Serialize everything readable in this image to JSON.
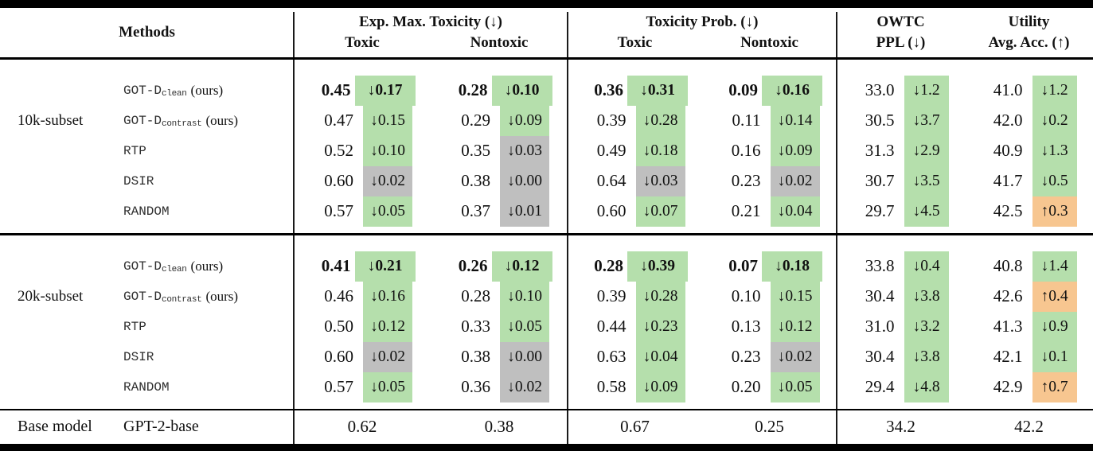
{
  "colors": {
    "green": "#b5dfac",
    "gray": "#bfbfbf",
    "orange": "#f7c690"
  },
  "header": {
    "methods_label": "Methods",
    "groups": [
      {
        "line1": "Exp. Max. Toxicity (↓)",
        "subs": [
          "Toxic",
          "Nontoxic"
        ]
      },
      {
        "line1": "Toxicity Prob. (↓)",
        "subs": [
          "Toxic",
          "Nontoxic"
        ]
      },
      {
        "line1": "OWTC",
        "line2": "PPL (↓)"
      },
      {
        "line1": "Utility",
        "line2": "Avg. Acc. (↑)"
      }
    ]
  },
  "sections": [
    {
      "group_label": "10k-subset",
      "rows": [
        {
          "method": {
            "base": "GOT-D",
            "sub": "clean",
            "suffix": "(ours)"
          },
          "cells": [
            {
              "value": "0.45",
              "delta": "↓0.17",
              "color": "green",
              "bold": true
            },
            {
              "value": "0.28",
              "delta": "↓0.10",
              "color": "green",
              "bold": true
            },
            {
              "value": "0.36",
              "delta": "↓0.31",
              "color": "green",
              "bold": true
            },
            {
              "value": "0.09",
              "delta": "↓0.16",
              "color": "green",
              "bold": true
            },
            {
              "value": "33.0",
              "delta": "↓1.2",
              "color": "green",
              "bold": false
            },
            {
              "value": "41.0",
              "delta": "↓1.2",
              "color": "green",
              "bold": false
            }
          ]
        },
        {
          "method": {
            "base": "GOT-D",
            "sub": "contrast",
            "suffix": "(ours)"
          },
          "cells": [
            {
              "value": "0.47",
              "delta": "↓0.15",
              "color": "green",
              "bold": false
            },
            {
              "value": "0.29",
              "delta": "↓0.09",
              "color": "green",
              "bold": false
            },
            {
              "value": "0.39",
              "delta": "↓0.28",
              "color": "green",
              "bold": false
            },
            {
              "value": "0.11",
              "delta": "↓0.14",
              "color": "green",
              "bold": false
            },
            {
              "value": "30.5",
              "delta": "↓3.7",
              "color": "green",
              "bold": false
            },
            {
              "value": "42.0",
              "delta": "↓0.2",
              "color": "green",
              "bold": false
            }
          ]
        },
        {
          "method": {
            "base": "RTP",
            "sub": "",
            "suffix": ""
          },
          "cells": [
            {
              "value": "0.52",
              "delta": "↓0.10",
              "color": "green",
              "bold": false
            },
            {
              "value": "0.35",
              "delta": "↓0.03",
              "color": "gray",
              "bold": false
            },
            {
              "value": "0.49",
              "delta": "↓0.18",
              "color": "green",
              "bold": false
            },
            {
              "value": "0.16",
              "delta": "↓0.09",
              "color": "green",
              "bold": false
            },
            {
              "value": "31.3",
              "delta": "↓2.9",
              "color": "green",
              "bold": false
            },
            {
              "value": "40.9",
              "delta": "↓1.3",
              "color": "green",
              "bold": false
            }
          ]
        },
        {
          "method": {
            "base": "DSIR",
            "sub": "",
            "suffix": ""
          },
          "cells": [
            {
              "value": "0.60",
              "delta": "↓0.02",
              "color": "gray",
              "bold": false
            },
            {
              "value": "0.38",
              "delta": "↓0.00",
              "color": "gray",
              "bold": false
            },
            {
              "value": "0.64",
              "delta": "↓0.03",
              "color": "gray",
              "bold": false
            },
            {
              "value": "0.23",
              "delta": "↓0.02",
              "color": "gray",
              "bold": false
            },
            {
              "value": "30.7",
              "delta": "↓3.5",
              "color": "green",
              "bold": false
            },
            {
              "value": "41.7",
              "delta": "↓0.5",
              "color": "green",
              "bold": false
            }
          ]
        },
        {
          "method": {
            "base": "RANDOM",
            "sub": "",
            "suffix": ""
          },
          "cells": [
            {
              "value": "0.57",
              "delta": "↓0.05",
              "color": "green",
              "bold": false
            },
            {
              "value": "0.37",
              "delta": "↓0.01",
              "color": "gray",
              "bold": false
            },
            {
              "value": "0.60",
              "delta": "↓0.07",
              "color": "green",
              "bold": false
            },
            {
              "value": "0.21",
              "delta": "↓0.04",
              "color": "green",
              "bold": false
            },
            {
              "value": "29.7",
              "delta": "↓4.5",
              "color": "green",
              "bold": false
            },
            {
              "value": "42.5",
              "delta": "↑0.3",
              "color": "orange",
              "bold": false
            }
          ]
        }
      ]
    },
    {
      "group_label": "20k-subset",
      "rows": [
        {
          "method": {
            "base": "GOT-D",
            "sub": "clean",
            "suffix": "(ours)"
          },
          "cells": [
            {
              "value": "0.41",
              "delta": "↓0.21",
              "color": "green",
              "bold": true
            },
            {
              "value": "0.26",
              "delta": "↓0.12",
              "color": "green",
              "bold": true
            },
            {
              "value": "0.28",
              "delta": "↓0.39",
              "color": "green",
              "bold": true
            },
            {
              "value": "0.07",
              "delta": "↓0.18",
              "color": "green",
              "bold": true
            },
            {
              "value": "33.8",
              "delta": "↓0.4",
              "color": "green",
              "bold": false
            },
            {
              "value": "40.8",
              "delta": "↓1.4",
              "color": "green",
              "bold": false
            }
          ]
        },
        {
          "method": {
            "base": "GOT-D",
            "sub": "contrast",
            "suffix": "(ours)"
          },
          "cells": [
            {
              "value": "0.46",
              "delta": "↓0.16",
              "color": "green",
              "bold": false
            },
            {
              "value": "0.28",
              "delta": "↓0.10",
              "color": "green",
              "bold": false
            },
            {
              "value": "0.39",
              "delta": "↓0.28",
              "color": "green",
              "bold": false
            },
            {
              "value": "0.10",
              "delta": "↓0.15",
              "color": "green",
              "bold": false
            },
            {
              "value": "30.4",
              "delta": "↓3.8",
              "color": "green",
              "bold": false
            },
            {
              "value": "42.6",
              "delta": "↑0.4",
              "color": "orange",
              "bold": false
            }
          ]
        },
        {
          "method": {
            "base": "RTP",
            "sub": "",
            "suffix": ""
          },
          "cells": [
            {
              "value": "0.50",
              "delta": "↓0.12",
              "color": "green",
              "bold": false
            },
            {
              "value": "0.33",
              "delta": "↓0.05",
              "color": "green",
              "bold": false
            },
            {
              "value": "0.44",
              "delta": "↓0.23",
              "color": "green",
              "bold": false
            },
            {
              "value": "0.13",
              "delta": "↓0.12",
              "color": "green",
              "bold": false
            },
            {
              "value": "31.0",
              "delta": "↓3.2",
              "color": "green",
              "bold": false
            },
            {
              "value": "41.3",
              "delta": "↓0.9",
              "color": "green",
              "bold": false
            }
          ]
        },
        {
          "method": {
            "base": "DSIR",
            "sub": "",
            "suffix": ""
          },
          "cells": [
            {
              "value": "0.60",
              "delta": "↓0.02",
              "color": "gray",
              "bold": false
            },
            {
              "value": "0.38",
              "delta": "↓0.00",
              "color": "gray",
              "bold": false
            },
            {
              "value": "0.63",
              "delta": "↓0.04",
              "color": "green",
              "bold": false
            },
            {
              "value": "0.23",
              "delta": "↓0.02",
              "color": "gray",
              "bold": false
            },
            {
              "value": "30.4",
              "delta": "↓3.8",
              "color": "green",
              "bold": false
            },
            {
              "value": "42.1",
              "delta": "↓0.1",
              "color": "green",
              "bold": false
            }
          ]
        },
        {
          "method": {
            "base": "RANDOM",
            "sub": "",
            "suffix": ""
          },
          "cells": [
            {
              "value": "0.57",
              "delta": "↓0.05",
              "color": "green",
              "bold": false
            },
            {
              "value": "0.36",
              "delta": "↓0.02",
              "color": "gray",
              "bold": false
            },
            {
              "value": "0.58",
              "delta": "↓0.09",
              "color": "green",
              "bold": false
            },
            {
              "value": "0.20",
              "delta": "↓0.05",
              "color": "green",
              "bold": false
            },
            {
              "value": "29.4",
              "delta": "↓4.8",
              "color": "green",
              "bold": false
            },
            {
              "value": "42.9",
              "delta": "↑0.7",
              "color": "orange",
              "bold": false
            }
          ]
        }
      ]
    }
  ],
  "base_row": {
    "label": "Base model",
    "method": "GPT-2-base",
    "values": [
      "0.62",
      "0.38",
      "0.67",
      "0.25",
      "34.2",
      "42.2"
    ]
  }
}
